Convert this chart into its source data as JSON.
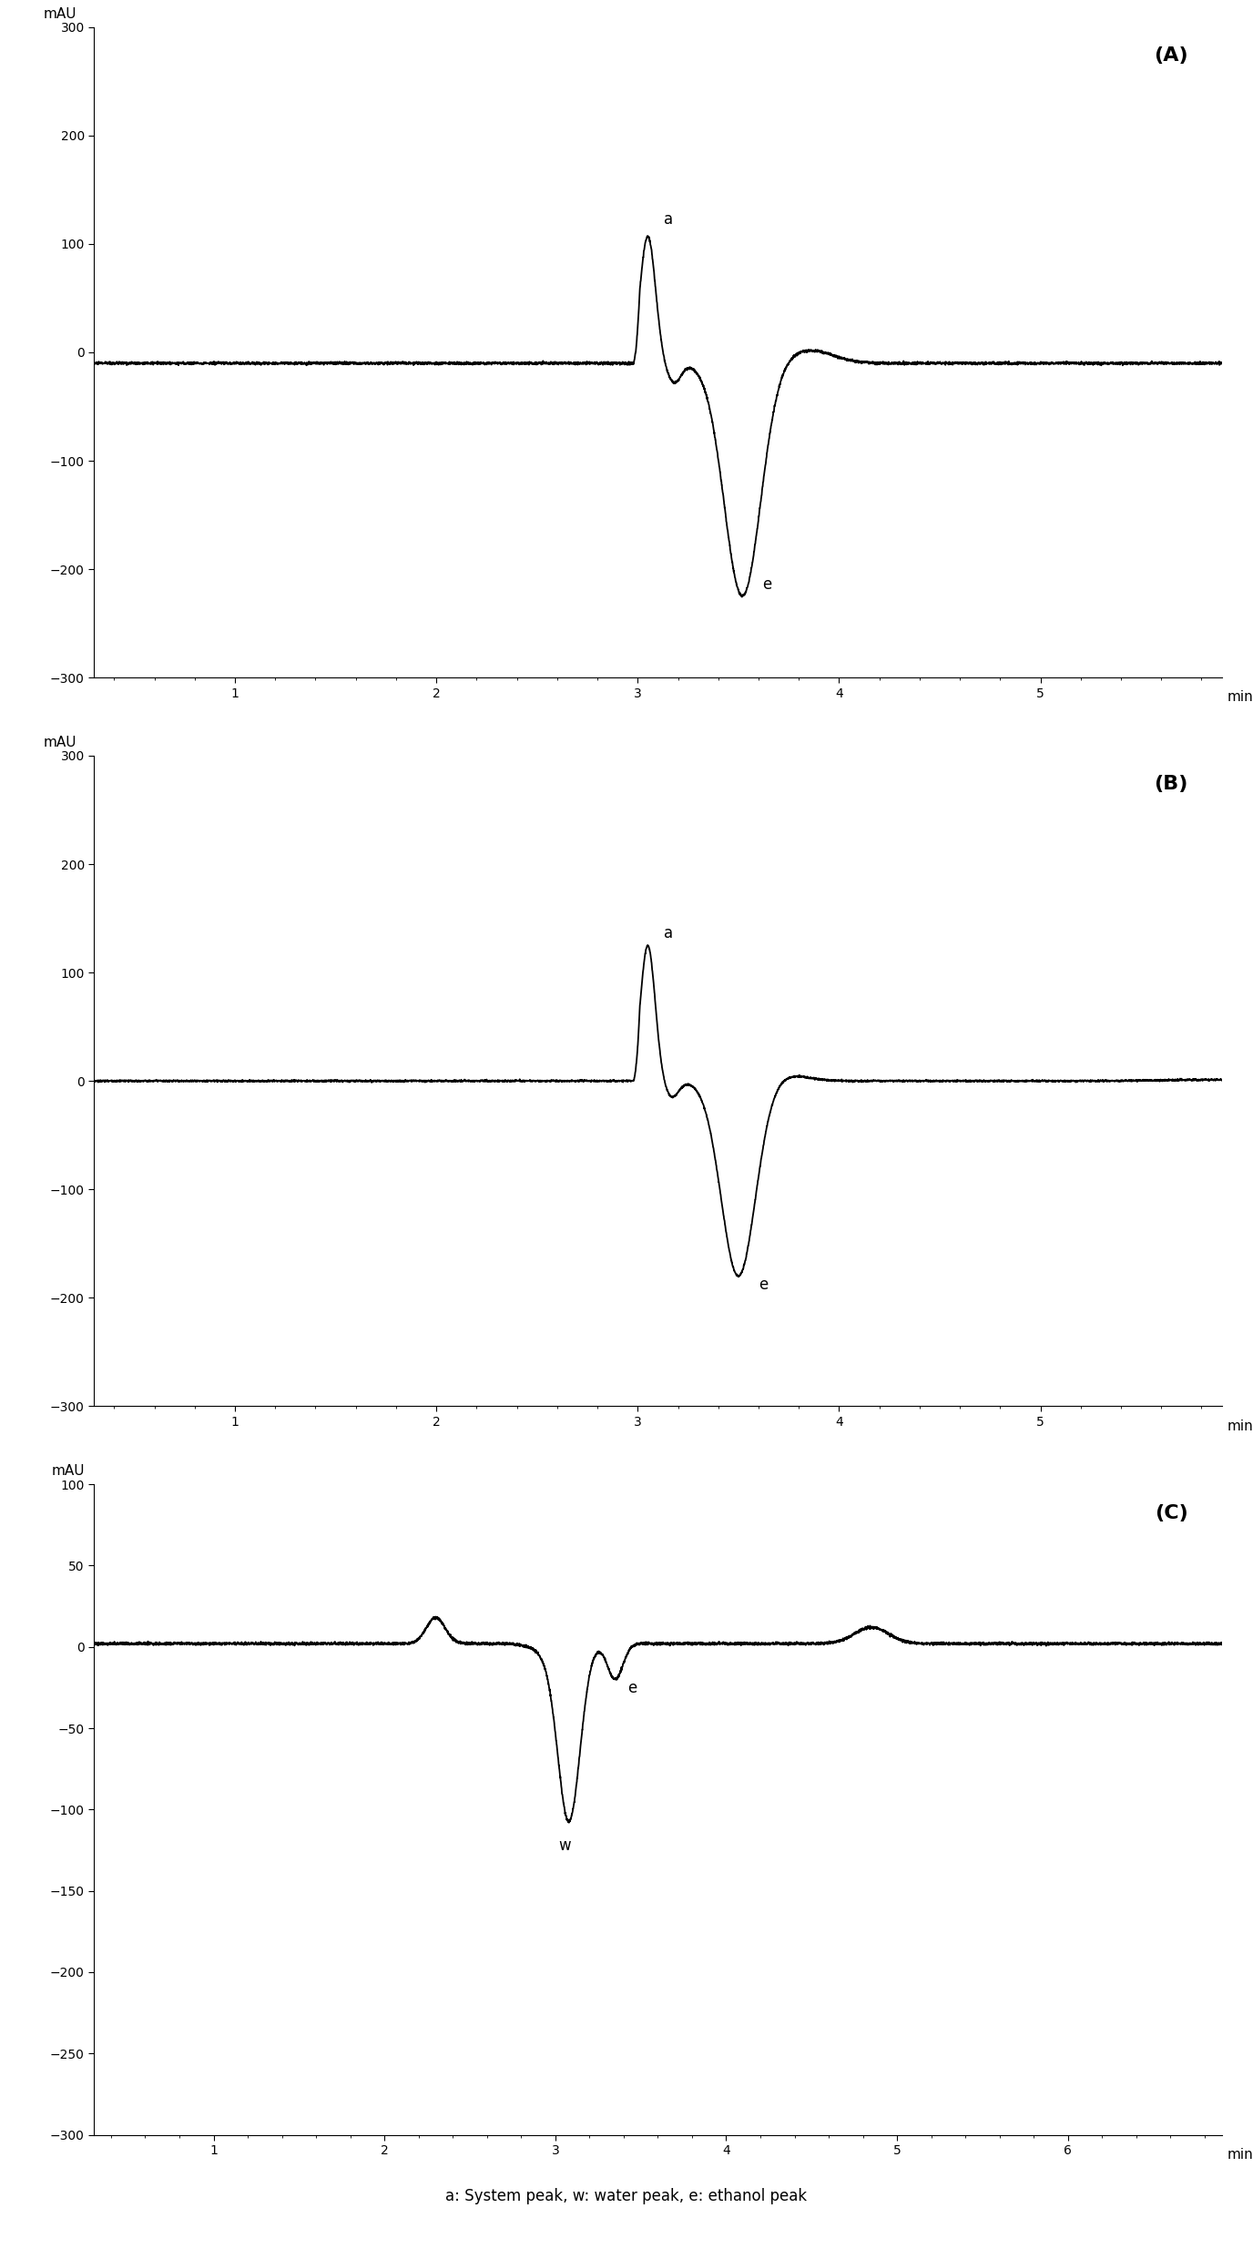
{
  "panel_A": {
    "label": "(A)",
    "xlim": [
      0.3,
      5.9
    ],
    "ylim": [
      -300,
      300
    ],
    "yticks": [
      -300,
      -200,
      -100,
      0,
      100,
      200,
      300
    ],
    "xtick_positions": [
      1,
      2,
      3,
      4,
      5
    ],
    "xtick_labels": [
      "1",
      "2",
      "3",
      "4",
      "5"
    ],
    "baseline_level": -10,
    "annot_a": "a",
    "annot_e": "e"
  },
  "panel_B": {
    "label": "(B)",
    "xlim": [
      0.3,
      5.9
    ],
    "ylim": [
      -300,
      300
    ],
    "yticks": [
      -300,
      -200,
      -100,
      0,
      100,
      200,
      300
    ],
    "xtick_positions": [
      1,
      2,
      3,
      4,
      5
    ],
    "xtick_labels": [
      "1",
      "2",
      "3",
      "4",
      "5"
    ],
    "baseline_level": 0,
    "annot_a": "a",
    "annot_e": "e"
  },
  "panel_C": {
    "label": "(C)",
    "xlim": [
      0.3,
      6.9
    ],
    "ylim": [
      -300,
      100
    ],
    "yticks": [
      -300,
      -250,
      -200,
      -150,
      -100,
      -50,
      0,
      50,
      100
    ],
    "xtick_positions": [
      1,
      2,
      3,
      4,
      5,
      6
    ],
    "xtick_labels": [
      "1",
      "2",
      "3",
      "4",
      "5",
      "6"
    ],
    "baseline_level": 0,
    "annot_w": "w",
    "annot_e": "e"
  },
  "mau_label": "mAU",
  "min_label": "min",
  "line_color": "#000000",
  "line_width": 1.3,
  "tick_fontsize": 10,
  "annot_fontsize": 12,
  "panel_label_fontsize": 16,
  "mau_fontsize": 11,
  "min_fontsize": 11,
  "caption": "a: System peak, w: water peak, e: ethanol peak",
  "caption_fontsize": 12
}
